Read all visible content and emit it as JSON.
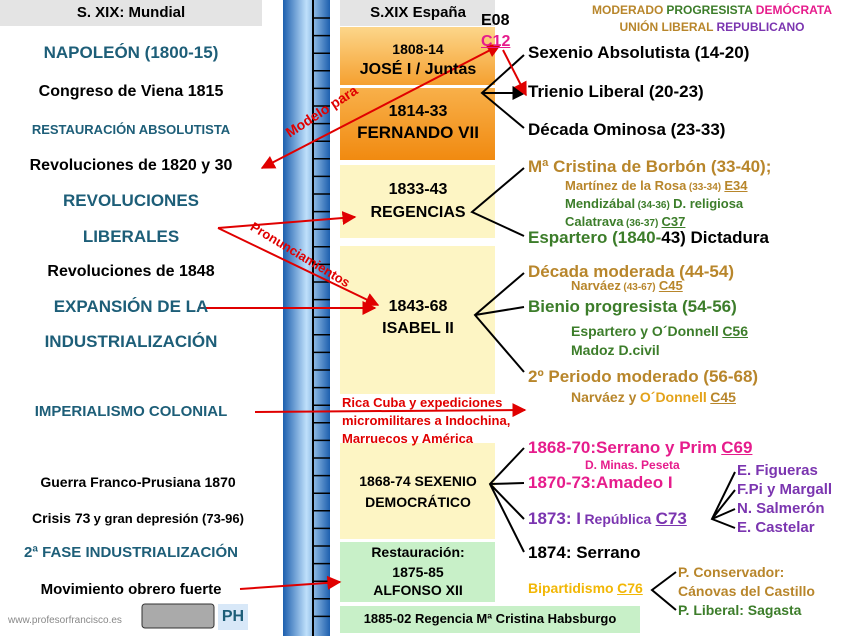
{
  "header": {
    "world": "S. XIX: Mundial",
    "spain": "S.XIX España"
  },
  "legend": {
    "row1": [
      "MODERADO",
      "PROGRESISTA",
      "DEMÓCRATA"
    ],
    "row2": [
      "UNIÓN LIBERAL",
      "REPUBLICANO"
    ]
  },
  "codes": [
    "E08",
    "C12"
  ],
  "world": [
    "NAPOLEÓN (1800-15)",
    "Congreso de Viena 1815",
    "RESTAURACIÓN ABSOLUTISTA",
    "Revoluciones de 1820 y 30",
    "REVOLUCIONES",
    "LIBERALES",
    "Revoluciones de 1848",
    "EXPANSIÓN DE LA",
    "INDUSTRIALIZACIÓN",
    "IMPERIALISMO COLONIAL",
    "Guerra Franco-Prusiana  1870",
    [
      "Crisis 73",
      "y gran depresión (73-96)"
    ],
    "2ª FASE INDUSTRIALIZACIÓN",
    "Movimiento obrero fuerte"
  ],
  "periods": [
    [
      "1808-14",
      "JOSÉ I / Juntas"
    ],
    [
      "1814-33",
      "FERNANDO VII"
    ],
    [
      "1833-43",
      "REGENCIAS"
    ],
    [
      "1843-68",
      "ISABEL II"
    ],
    [
      "Rica Cuba y expediciones",
      "micromilitares a Indochina,",
      "Marruecos y América"
    ],
    [
      "1868-74 SEXENIO",
      "DEMOCRÁTICO"
    ],
    [
      "Restauración:",
      "1875-85",
      "ALFONSO XII"
    ],
    [
      "1885-02 Regencia Mª Cristina Habsburgo"
    ]
  ],
  "events": [
    [
      "Sexenio Absolutista (14-20)"
    ],
    [
      "Trienio Liberal (20-23)"
    ],
    [
      "Década Ominosa (23-33)"
    ],
    [
      "Mª Cristina de Borbón (33-40);"
    ],
    [
      "Martínez de la Rosa",
      "(33-34)",
      "E34"
    ],
    [
      "Mendizábal",
      "(34-36)",
      "D. religiosa"
    ],
    [
      "Calatrava",
      "(36-37)",
      "C37"
    ],
    [
      "Espartero (1840-",
      "43) Dictadura"
    ],
    [
      "Década moderada (44-54)"
    ],
    [
      "Narváez",
      "(43-67)",
      "C45"
    ],
    [
      "Bienio progresista (54-56)"
    ],
    [
      "Espartero y O´Donnell",
      "C56"
    ],
    [
      "Madoz D.civil"
    ],
    [
      "2º Periodo moderado (56-68)"
    ],
    [
      "Narváez y",
      "O´Donnell",
      "C45"
    ],
    [
      "1868-70:Serrano y Prim",
      "C69"
    ],
    [
      "D. Minas. Peseta"
    ],
    [
      "1870-73:Amadeo I"
    ],
    [
      "1873: I",
      "República",
      "C73"
    ],
    [
      "1874: Serrano"
    ],
    [
      "Bipartidismo",
      "C76"
    ]
  ],
  "presidents": [
    "E. Figueras",
    "F.Pi y Margall",
    "N. Salmerón",
    "E. Castelar"
  ],
  "parties": [
    "P. Conservador:",
    "Cánovas del Castillo",
    "P. Liberal:  Sagasta"
  ],
  "annotations": [
    "Modelo para",
    "Pronunciamientos"
  ],
  "footer": {
    "site": "www.profesorfrancisco.es",
    "badge": "PH"
  }
}
